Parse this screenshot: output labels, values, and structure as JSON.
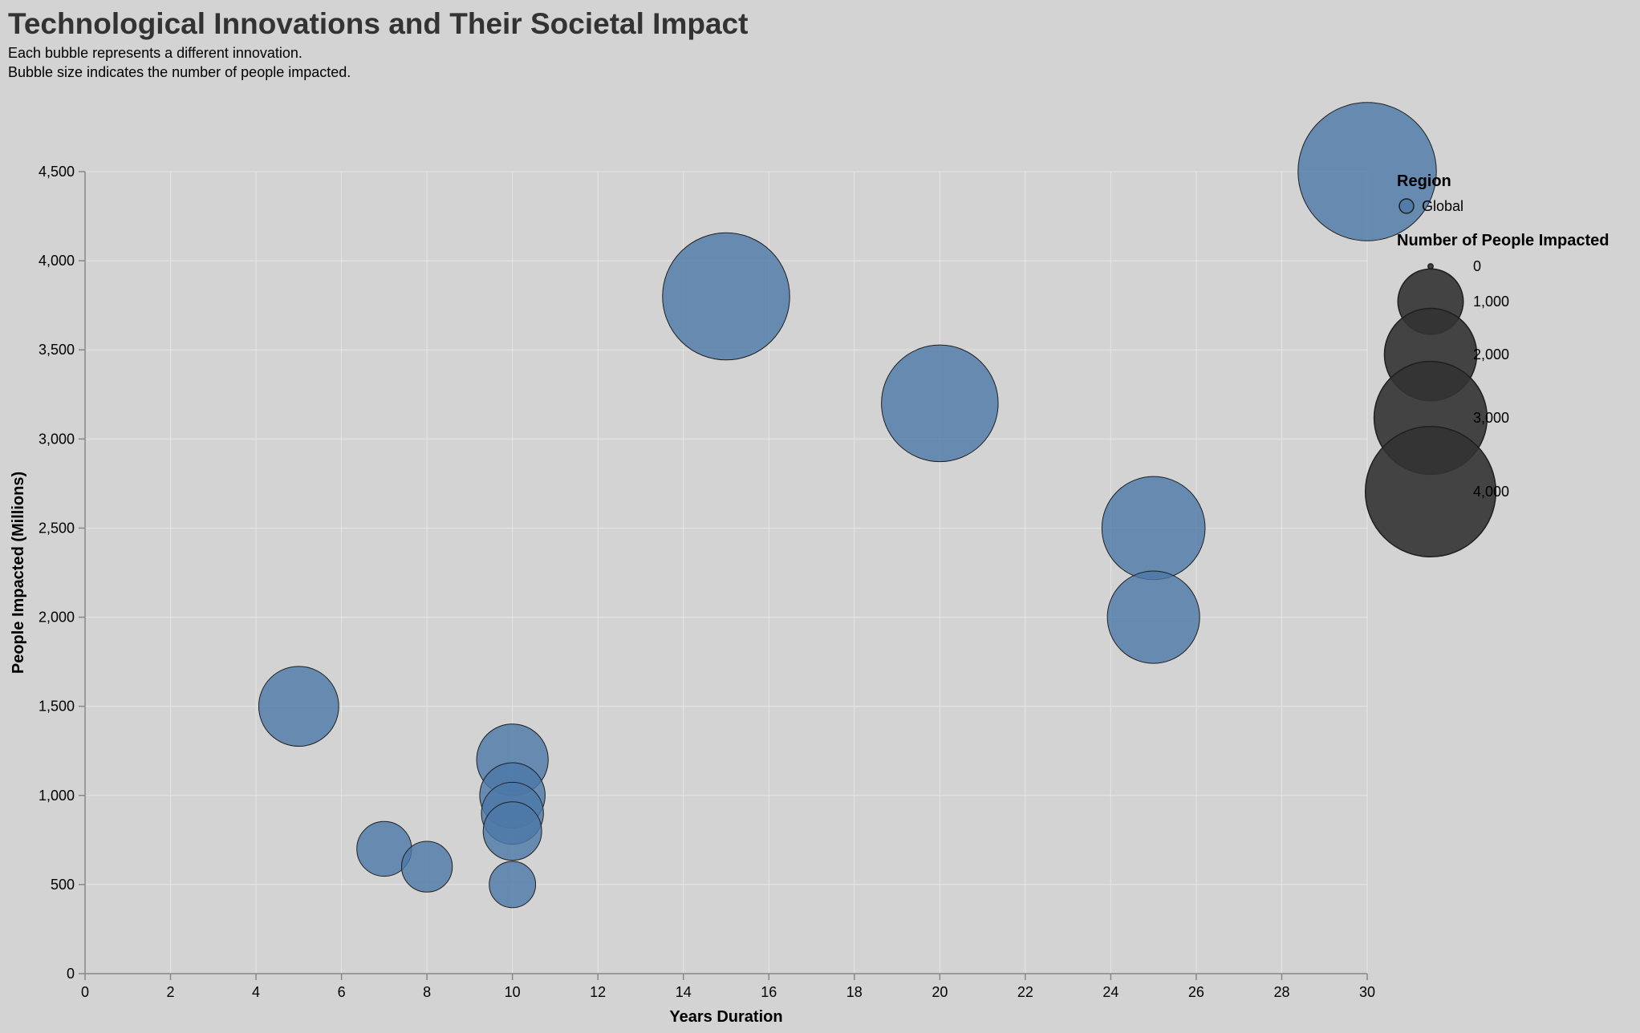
{
  "chart_data": {
    "type": "scatter",
    "title": "Technological Innovations and Their Societal Impact",
    "subtitle": [
      "Each bubble represents a different innovation.",
      "Bubble size indicates the number of people impacted."
    ],
    "xlabel": "Years Duration",
    "ylabel": "People Impacted (Millions)",
    "xlim": [
      0,
      30
    ],
    "ylim": [
      0,
      4500
    ],
    "x_ticks": [
      0,
      2,
      4,
      6,
      8,
      10,
      12,
      14,
      16,
      18,
      20,
      22,
      24,
      26,
      28,
      30
    ],
    "x_tick_labels": [
      "0",
      "2",
      "4",
      "6",
      "8",
      "10",
      "12",
      "14",
      "16",
      "18",
      "20",
      "22",
      "24",
      "26",
      "28",
      "30"
    ],
    "y_ticks": [
      0,
      500,
      1000,
      1500,
      2000,
      2500,
      3000,
      3500,
      4000,
      4500
    ],
    "y_tick_labels": [
      "0",
      "500",
      "1,000",
      "1,500",
      "2,000",
      "2,500",
      "3,000",
      "3,500",
      "4,000",
      "4,500"
    ],
    "grid": true,
    "legend_position": "right",
    "series": [
      {
        "name": "Global",
        "color": "#4c78a8",
        "points": [
          {
            "x": 30,
            "y": 4500,
            "size": 4500
          },
          {
            "x": 15,
            "y": 3800,
            "size": 3800
          },
          {
            "x": 20,
            "y": 3200,
            "size": 3200
          },
          {
            "x": 25,
            "y": 2500,
            "size": 2500
          },
          {
            "x": 25,
            "y": 2000,
            "size": 2000
          },
          {
            "x": 5,
            "y": 1500,
            "size": 1500
          },
          {
            "x": 10,
            "y": 1200,
            "size": 1200
          },
          {
            "x": 10,
            "y": 1000,
            "size": 1000
          },
          {
            "x": 10,
            "y": 900,
            "size": 900
          },
          {
            "x": 10,
            "y": 800,
            "size": 800
          },
          {
            "x": 7,
            "y": 700,
            "size": 700
          },
          {
            "x": 8,
            "y": 600,
            "size": 600
          },
          {
            "x": 10,
            "y": 500,
            "size": 500
          }
        ]
      }
    ],
    "legend": {
      "color_title": "Region",
      "color_entries": [
        {
          "label": "Global",
          "color": "#4c78a8"
        }
      ],
      "size_title": "Number of People Impacted",
      "size_values": [
        0,
        1000,
        2000,
        3000,
        4000
      ],
      "size_labels": [
        "0",
        "1,000",
        "2,000",
        "3,000",
        "4,000"
      ]
    }
  }
}
